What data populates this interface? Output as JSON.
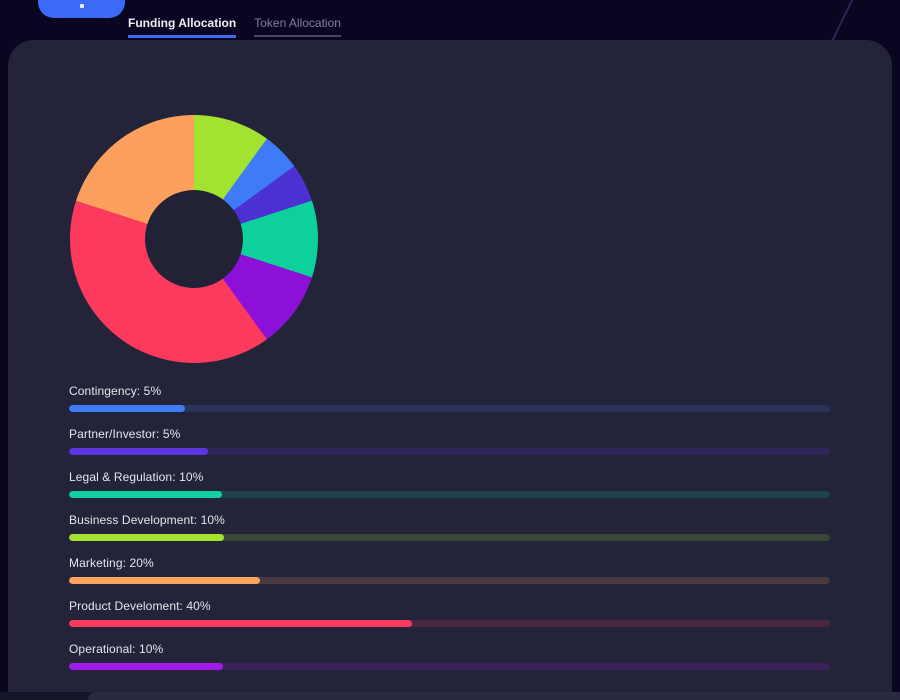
{
  "page": {
    "background": "#0a0622",
    "card_background": "#232339",
    "accent": "#3c69f5"
  },
  "topbar": {
    "button_label": "",
    "tabs": [
      {
        "label": "Funding Allocation",
        "active": true,
        "underline_color": "#3c69f5"
      },
      {
        "label": "Token Allocation",
        "active": false,
        "underline_color": "#45455e"
      }
    ]
  },
  "chart_data": {
    "type": "pie",
    "title": "Funding Allocation",
    "donut": true,
    "start_angle_deg": 0,
    "direction": "clockwise",
    "legend_position": "none",
    "segments": [
      {
        "label": "Business Development",
        "value": 10,
        "color": "#a3e230"
      },
      {
        "label": "Contingency",
        "value": 5,
        "color": "#3e7bf7"
      },
      {
        "label": "Partner/Investor",
        "value": 5,
        "color": "#4c30d2"
      },
      {
        "label": "Legal & Regulation",
        "value": 10,
        "color": "#0ed09c"
      },
      {
        "label": "Operational",
        "value": 10,
        "color": "#8c10d8"
      },
      {
        "label": "Product Develoment",
        "value": 40,
        "color": "#fb3a5d"
      },
      {
        "label": "Marketing",
        "value": 20,
        "color": "#fda05e"
      }
    ]
  },
  "bars": [
    {
      "label": "Contingency: 5%",
      "value_pct": 5,
      "fill_pct": 15.2,
      "color": "#3e7cf8",
      "track": "#283359"
    },
    {
      "label": "Partner/Investor: 5%",
      "value_pct": 5,
      "fill_pct": 18.3,
      "color": "#5b35e0",
      "track": "#2d2657"
    },
    {
      "label": "Legal & Regulation: 10%",
      "value_pct": 10,
      "fill_pct": 20.1,
      "color": "#0fd0a0",
      "track": "#1f424c"
    },
    {
      "label": "Business Development: 10%",
      "value_pct": 10,
      "fill_pct": 20.4,
      "color": "#a5e32f",
      "track": "#3a4637"
    },
    {
      "label": "Marketing: 20%",
      "value_pct": 20,
      "fill_pct": 25.1,
      "color": "#fca55f",
      "track": "#4a3a40"
    },
    {
      "label": "Product Develoment: 40%",
      "value_pct": 40,
      "fill_pct": 45.1,
      "color": "#fb3a5d",
      "track": "#4a273f"
    },
    {
      "label": "Operational: 10%",
      "value_pct": 10,
      "fill_pct": 20.2,
      "color": "#a11ae8",
      "track": "#3a2158"
    }
  ]
}
